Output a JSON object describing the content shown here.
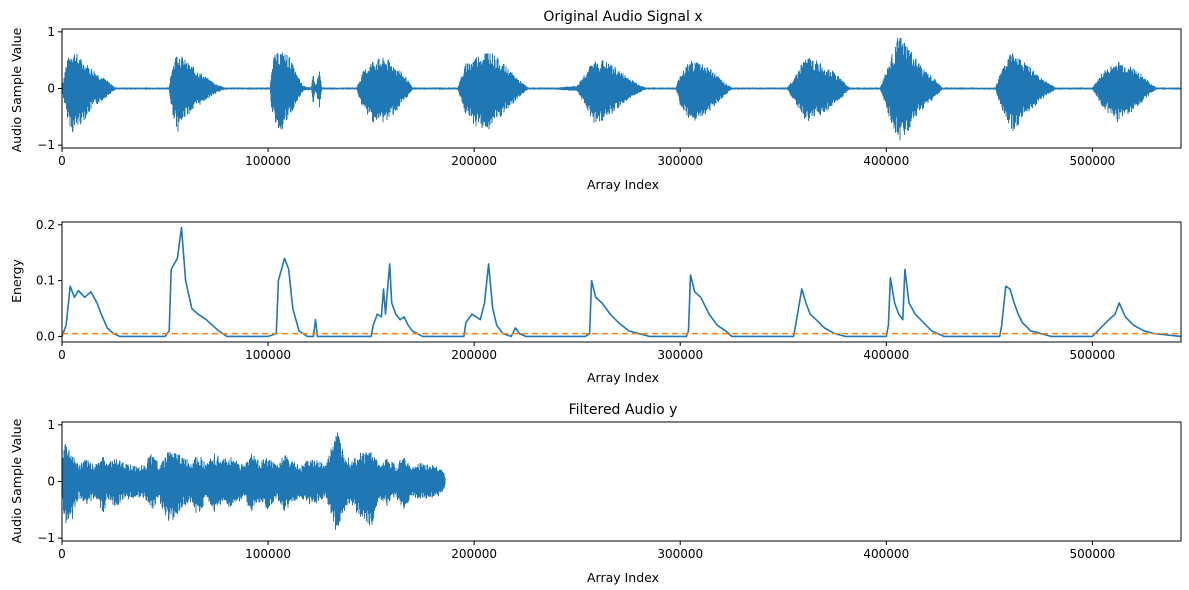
{
  "colors": {
    "signal": "#1f77b4",
    "threshold": "#ff7f0e"
  },
  "chart_data": [
    {
      "type": "line",
      "title": "Original Audio Signal x",
      "xlabel": "Array Index",
      "ylabel": "Audio Sample Value",
      "xlim": [
        0,
        543000
      ],
      "ylim": [
        -1.05,
        1.05
      ],
      "xticks": [
        0,
        100000,
        200000,
        300000,
        400000,
        500000
      ],
      "xtick_labels": [
        "0",
        "100000",
        "200000",
        "300000",
        "400000",
        "500000"
      ],
      "yticks": [
        -1,
        0,
        1
      ],
      "ytick_labels": [
        "−1",
        "0",
        "1"
      ],
      "grid": false,
      "series": [
        {
          "kind": "envelope",
          "x": [
            0,
            2000,
            5000,
            10000,
            15000,
            20000,
            24000,
            26000,
            52000,
            53000,
            56000,
            60000,
            65000,
            70000,
            75000,
            79000,
            101000,
            102000,
            106000,
            110000,
            114000,
            117000,
            121000,
            122000,
            123000,
            125000,
            126000,
            143000,
            146000,
            151000,
            157000,
            162000,
            167000,
            170000,
            192000,
            196000,
            201000,
            207000,
            212000,
            218000,
            222000,
            226000,
            240000,
            250000,
            254000,
            258000,
            262000,
            267000,
            272000,
            278000,
            283000,
            298000,
            300000,
            305000,
            310000,
            315000,
            320000,
            325000,
            352000,
            356000,
            361000,
            366000,
            372000,
            378000,
            382000,
            397000,
            401000,
            406000,
            410000,
            414000,
            418000,
            424000,
            427000,
            453000,
            456000,
            461000,
            466000,
            472000,
            478000,
            482000,
            500000,
            505000,
            512000,
            518000,
            524000,
            528000,
            531000,
            543000
          ],
          "upper": [
            0.02,
            0.45,
            0.72,
            0.5,
            0.35,
            0.2,
            0.08,
            0.02,
            0.02,
            0.35,
            0.68,
            0.5,
            0.35,
            0.2,
            0.08,
            0.02,
            0.02,
            0.55,
            0.68,
            0.6,
            0.25,
            0.05,
            0.02,
            0.3,
            0.02,
            0.35,
            0.02,
            0.02,
            0.3,
            0.52,
            0.55,
            0.4,
            0.2,
            0.02,
            0.02,
            0.45,
            0.58,
            0.7,
            0.52,
            0.3,
            0.15,
            0.02,
            0.02,
            0.05,
            0.3,
            0.48,
            0.52,
            0.42,
            0.28,
            0.12,
            0.02,
            0.02,
            0.28,
            0.5,
            0.48,
            0.35,
            0.15,
            0.02,
            0.02,
            0.25,
            0.58,
            0.5,
            0.38,
            0.18,
            0.02,
            0.02,
            0.42,
            0.95,
            0.78,
            0.55,
            0.35,
            0.15,
            0.02,
            0.02,
            0.35,
            0.68,
            0.5,
            0.3,
            0.12,
            0.02,
            0.02,
            0.3,
            0.48,
            0.42,
            0.25,
            0.1,
            0.02,
            0.02
          ],
          "lower": [
            -0.02,
            -0.45,
            -0.8,
            -0.6,
            -0.35,
            -0.2,
            -0.08,
            -0.02,
            -0.02,
            -0.35,
            -0.78,
            -0.5,
            -0.35,
            -0.2,
            -0.08,
            -0.02,
            -0.02,
            -0.52,
            -0.78,
            -0.55,
            -0.25,
            -0.05,
            -0.02,
            -0.32,
            -0.02,
            -0.35,
            -0.02,
            -0.02,
            -0.38,
            -0.6,
            -0.62,
            -0.42,
            -0.2,
            -0.02,
            -0.02,
            -0.48,
            -0.68,
            -0.75,
            -0.55,
            -0.32,
            -0.15,
            -0.02,
            -0.02,
            -0.05,
            -0.3,
            -0.62,
            -0.58,
            -0.45,
            -0.28,
            -0.12,
            -0.02,
            -0.02,
            -0.3,
            -0.68,
            -0.52,
            -0.38,
            -0.18,
            -0.02,
            -0.02,
            -0.28,
            -0.6,
            -0.52,
            -0.38,
            -0.18,
            -0.02,
            -0.02,
            -0.5,
            -0.95,
            -0.8,
            -0.58,
            -0.35,
            -0.15,
            -0.02,
            -0.02,
            -0.38,
            -0.8,
            -0.55,
            -0.32,
            -0.12,
            -0.02,
            -0.02,
            -0.35,
            -0.6,
            -0.45,
            -0.25,
            -0.1,
            -0.02,
            -0.02
          ]
        }
      ]
    },
    {
      "type": "line",
      "title": "",
      "xlabel": "Array Index",
      "ylabel": "Energy",
      "xlim": [
        0,
        543000
      ],
      "ylim": [
        -0.01,
        0.205
      ],
      "xticks": [
        0,
        100000,
        200000,
        300000,
        400000,
        500000
      ],
      "xtick_labels": [
        "0",
        "100000",
        "200000",
        "300000",
        "400000",
        "500000"
      ],
      "yticks": [
        0.0,
        0.1,
        0.2
      ],
      "ytick_labels": [
        "0.0",
        "0.1",
        "0.2"
      ],
      "grid": false,
      "series": [
        {
          "kind": "line",
          "x": [
            0,
            2000,
            4000,
            6000,
            8000,
            11000,
            14000,
            17000,
            19000,
            22000,
            25000,
            28000,
            50000,
            52000,
            53000,
            56000,
            58000,
            60000,
            63000,
            66000,
            70000,
            73000,
            76000,
            80000,
            100000,
            104000,
            105000,
            108000,
            110000,
            112000,
            115000,
            119000,
            122000,
            123000,
            124000,
            126000,
            150000,
            151000,
            153000,
            155000,
            156000,
            157000,
            159000,
            160000,
            162000,
            164000,
            166000,
            168000,
            170000,
            175000,
            195000,
            196000,
            199000,
            203000,
            205000,
            207000,
            209000,
            211000,
            214000,
            218000,
            220000,
            222000,
            225000,
            228000,
            254000,
            256000,
            257000,
            259000,
            262000,
            266000,
            270000,
            275000,
            280000,
            285000,
            303000,
            304000,
            305000,
            307000,
            310000,
            314000,
            318000,
            322000,
            325000,
            355000,
            356000,
            359000,
            361000,
            363000,
            366000,
            370000,
            375000,
            380000,
            400000,
            401000,
            402000,
            404000,
            406000,
            408000,
            409000,
            411000,
            414000,
            418000,
            422000,
            428000,
            455000,
            456000,
            458000,
            460000,
            462000,
            464000,
            466000,
            470000,
            475000,
            480000,
            500000,
            504000,
            508000,
            511000,
            513000,
            516000,
            520000,
            525000,
            530000,
            543000
          ],
          "y": [
            0.0,
            0.02,
            0.09,
            0.07,
            0.082,
            0.07,
            0.08,
            0.06,
            0.04,
            0.015,
            0.005,
            0.0,
            0.0,
            0.01,
            0.12,
            0.14,
            0.195,
            0.1,
            0.05,
            0.04,
            0.03,
            0.02,
            0.01,
            0.0,
            0.0,
            0.005,
            0.1,
            0.14,
            0.12,
            0.05,
            0.01,
            0.0,
            0.0,
            0.03,
            0.0,
            0.0,
            0.0,
            0.02,
            0.04,
            0.035,
            0.085,
            0.04,
            0.13,
            0.06,
            0.04,
            0.03,
            0.035,
            0.02,
            0.01,
            0.0,
            0.0,
            0.025,
            0.04,
            0.03,
            0.06,
            0.13,
            0.05,
            0.02,
            0.005,
            0.0,
            0.015,
            0.005,
            0.0,
            0.0,
            0.0,
            0.005,
            0.1,
            0.07,
            0.06,
            0.04,
            0.025,
            0.01,
            0.005,
            0.0,
            0.0,
            0.01,
            0.11,
            0.08,
            0.07,
            0.04,
            0.02,
            0.01,
            0.0,
            0.0,
            0.02,
            0.085,
            0.06,
            0.04,
            0.03,
            0.015,
            0.005,
            0.0,
            0.0,
            0.02,
            0.105,
            0.06,
            0.04,
            0.03,
            0.12,
            0.06,
            0.04,
            0.025,
            0.01,
            0.0,
            0.0,
            0.02,
            0.09,
            0.085,
            0.06,
            0.04,
            0.025,
            0.01,
            0.005,
            0.0,
            0.0,
            0.015,
            0.03,
            0.04,
            0.06,
            0.035,
            0.02,
            0.01,
            0.005,
            0.0
          ]
        },
        {
          "kind": "threshold",
          "y": 0.005
        }
      ]
    },
    {
      "type": "line",
      "title": "Filtered Audio y",
      "xlabel": "Array Index",
      "ylabel": "Audio Sample Value",
      "xlim": [
        0,
        543000
      ],
      "ylim": [
        -1.05,
        1.05
      ],
      "xticks": [
        0,
        100000,
        200000,
        300000,
        400000,
        500000
      ],
      "xtick_labels": [
        "0",
        "100000",
        "200000",
        "300000",
        "400000",
        "500000"
      ],
      "yticks": [
        -1,
        0,
        1
      ],
      "ytick_labels": [
        "−1",
        "0",
        "1"
      ],
      "grid": false,
      "series": [
        {
          "kind": "envelope",
          "x": [
            0,
            1500,
            4000,
            8000,
            12000,
            16000,
            20000,
            22000,
            26000,
            30000,
            35000,
            40000,
            44000,
            47000,
            52000,
            58000,
            62000,
            66000,
            70000,
            74000,
            78000,
            82000,
            88000,
            92000,
            96000,
            100000,
            104000,
            108000,
            112000,
            116000,
            120000,
            124000,
            128000,
            130000,
            133000,
            136000,
            140000,
            144000,
            150000,
            154000,
            158000,
            162000,
            166000,
            170000,
            174000,
            178000,
            182000,
            185000,
            186000
          ],
          "upper": [
            0.3,
            0.72,
            0.55,
            0.3,
            0.4,
            0.3,
            0.48,
            0.35,
            0.4,
            0.35,
            0.28,
            0.3,
            0.55,
            0.3,
            0.55,
            0.48,
            0.35,
            0.52,
            0.32,
            0.5,
            0.4,
            0.45,
            0.3,
            0.5,
            0.38,
            0.42,
            0.3,
            0.48,
            0.35,
            0.3,
            0.4,
            0.38,
            0.3,
            0.5,
            0.98,
            0.6,
            0.4,
            0.5,
            0.55,
            0.3,
            0.42,
            0.3,
            0.45,
            0.25,
            0.35,
            0.3,
            0.28,
            0.2,
            0.05
          ],
          "lower": [
            -0.3,
            -0.75,
            -0.8,
            -0.3,
            -0.42,
            -0.3,
            -0.6,
            -0.32,
            -0.45,
            -0.35,
            -0.28,
            -0.3,
            -0.5,
            -0.32,
            -0.8,
            -0.5,
            -0.35,
            -0.62,
            -0.32,
            -0.55,
            -0.4,
            -0.48,
            -0.3,
            -0.55,
            -0.38,
            -0.5,
            -0.3,
            -0.55,
            -0.35,
            -0.3,
            -0.42,
            -0.38,
            -0.3,
            -0.55,
            -0.92,
            -0.6,
            -0.4,
            -0.62,
            -0.82,
            -0.3,
            -0.45,
            -0.3,
            -0.5,
            -0.25,
            -0.35,
            -0.3,
            -0.28,
            -0.2,
            -0.05
          ]
        }
      ]
    }
  ]
}
